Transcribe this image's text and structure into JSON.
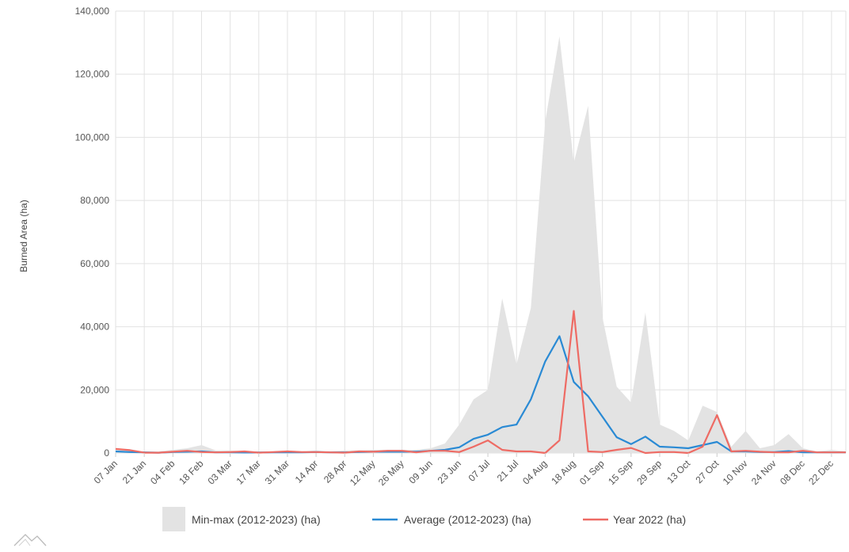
{
  "chart_data": {
    "type": "line",
    "ylabel": "Burned Area (ha)",
    "xlabel": "",
    "ylim": [
      0,
      140000
    ],
    "yticks": [
      0,
      20000,
      40000,
      60000,
      80000,
      100000,
      120000,
      140000
    ],
    "ytick_labels": [
      "0",
      "20,000",
      "40,000",
      "60,000",
      "80,000",
      "100,000",
      "120,000",
      "140,000"
    ],
    "grid": true,
    "legend_position": "bottom",
    "xtick_labels": [
      "07 Jan",
      "21 Jan",
      "04 Feb",
      "18 Feb",
      "03 Mar",
      "17 Mar",
      "31 Mar",
      "14 Apr",
      "28 Apr",
      "12 May",
      "26 May",
      "09 Jun",
      "23 Jun",
      "07 Jul",
      "21 Jul",
      "04 Aug",
      "18 Aug",
      "01 Sep",
      "15 Sep",
      "29 Sep",
      "13 Oct",
      "27 Oct",
      "10 Nov",
      "24 Nov",
      "08 Dec",
      "22 Dec"
    ],
    "x": [
      "07 Jan",
      "14 Jan",
      "21 Jan",
      "28 Jan",
      "04 Feb",
      "11 Feb",
      "18 Feb",
      "25 Feb",
      "03 Mar",
      "10 Mar",
      "17 Mar",
      "24 Mar",
      "31 Mar",
      "07 Apr",
      "14 Apr",
      "21 Apr",
      "28 Apr",
      "05 May",
      "12 May",
      "19 May",
      "26 May",
      "02 Jun",
      "09 Jun",
      "16 Jun",
      "23 Jun",
      "30 Jun",
      "07 Jul",
      "14 Jul",
      "21 Jul",
      "28 Jul",
      "04 Aug",
      "11 Aug",
      "18 Aug",
      "25 Aug",
      "01 Sep",
      "08 Sep",
      "15 Sep",
      "22 Sep",
      "29 Sep",
      "06 Oct",
      "13 Oct",
      "20 Oct",
      "27 Oct",
      "03 Nov",
      "10 Nov",
      "17 Nov",
      "24 Nov",
      "01 Dec",
      "08 Dec",
      "15 Dec",
      "22 Dec",
      "29 Dec"
    ],
    "series": [
      {
        "name": "Min-max (2012-2023) (ha)",
        "kind": "band",
        "color": "#e3e3e3",
        "min": [
          0,
          0,
          0,
          0,
          0,
          0,
          0,
          0,
          0,
          0,
          0,
          0,
          0,
          0,
          0,
          0,
          0,
          0,
          0,
          0,
          0,
          0,
          0,
          0,
          0,
          0,
          0,
          0,
          0,
          0,
          0,
          0,
          0,
          0,
          0,
          0,
          0,
          0,
          0,
          0,
          0,
          0,
          0,
          0,
          0,
          0,
          0,
          0,
          0,
          0,
          0,
          0
        ],
        "max": [
          1500,
          1000,
          500,
          500,
          1000,
          1500,
          2500,
          800,
          800,
          500,
          500,
          500,
          800,
          500,
          800,
          500,
          800,
          800,
          1000,
          1000,
          1000,
          1000,
          1500,
          3000,
          9000,
          17000,
          20000,
          49000,
          28000,
          46000,
          105000,
          132000,
          92000,
          110000,
          43000,
          21000,
          16000,
          44500,
          9000,
          7000,
          4000,
          15000,
          13000,
          2000,
          7000,
          1500,
          2500,
          6000,
          1500,
          500,
          1000,
          500
        ]
      },
      {
        "name": "Average (2012-2023) (ha)",
        "kind": "line",
        "color": "#2a8ad4",
        "values": [
          500,
          300,
          200,
          100,
          300,
          400,
          500,
          200,
          200,
          150,
          150,
          200,
          200,
          200,
          300,
          200,
          200,
          300,
          400,
          400,
          400,
          400,
          700,
          1000,
          1800,
          4500,
          5800,
          8200,
          9000,
          17000,
          29000,
          37000,
          22500,
          18000,
          11500,
          5000,
          2800,
          5200,
          2000,
          1800,
          1500,
          2500,
          3500,
          500,
          500,
          300,
          300,
          600,
          200,
          200,
          200,
          200
        ]
      },
      {
        "name": "Year 2022 (ha)",
        "kind": "line",
        "color": "#ee6b64",
        "values": [
          1300,
          900,
          100,
          100,
          400,
          700,
          300,
          200,
          300,
          500,
          100,
          300,
          500,
          300,
          300,
          200,
          100,
          500,
          400,
          700,
          700,
          200,
          700,
          700,
          300,
          2000,
          4000,
          1000,
          500,
          500,
          0,
          4000,
          45000,
          500,
          300,
          1000,
          1600,
          0,
          300,
          300,
          0,
          2000,
          12000,
          500,
          700,
          400,
          200,
          200,
          700,
          200,
          200,
          200
        ]
      }
    ]
  }
}
